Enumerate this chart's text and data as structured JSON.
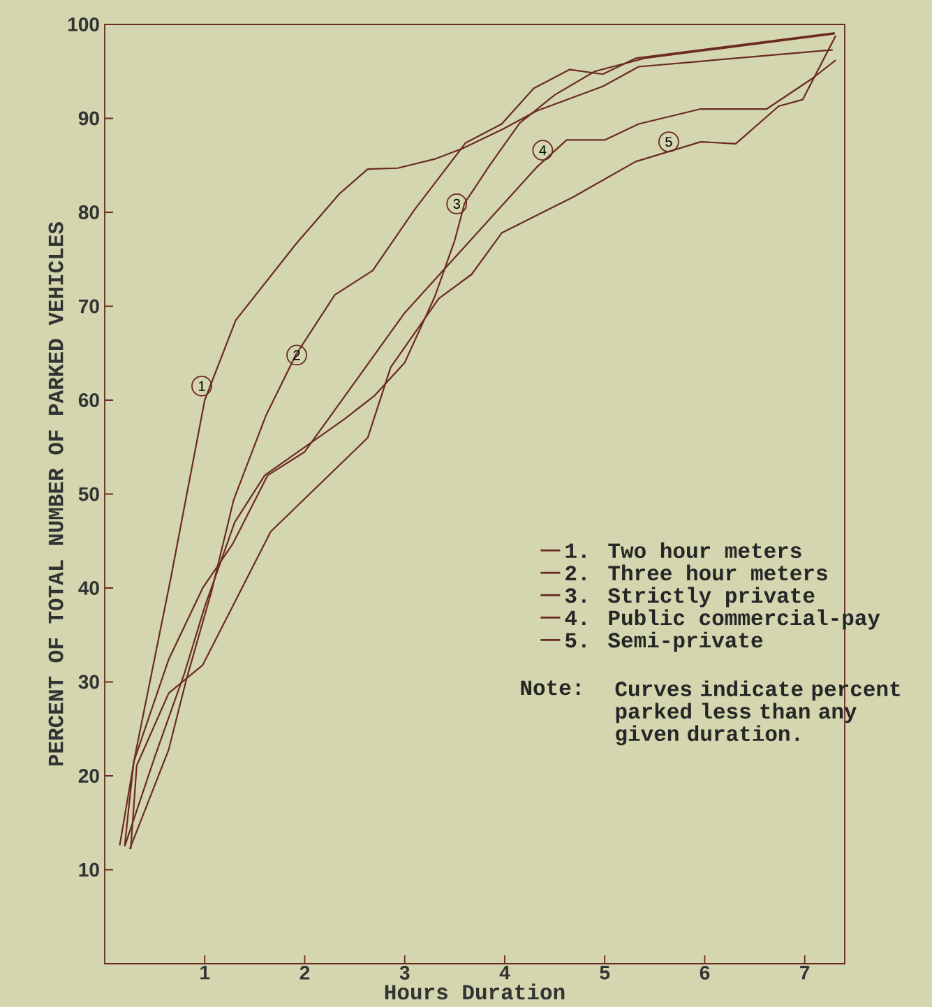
{
  "chart_data": {
    "type": "line",
    "xlabel": "Hours Duration",
    "ylabel": "PERCENT OF TOTAL NUMBER OF PARKED VEHICLES",
    "xlim": [
      0,
      7.4
    ],
    "ylim": [
      0,
      100
    ],
    "xticks": [
      1,
      2,
      3,
      4,
      5,
      6,
      7
    ],
    "yticks": [
      10,
      20,
      30,
      40,
      50,
      60,
      70,
      80,
      90,
      100
    ],
    "legend": "right",
    "series": [
      {
        "name": "1. Two hour meters",
        "color": "#6b2a22",
        "x": [
          0.15,
          0.3,
          0.66,
          1.0,
          1.31,
          1.91,
          2.35,
          2.63,
          2.93,
          3.31,
          3.58,
          3.99,
          4.32,
          4.98,
          5.34,
          7.28
        ],
        "values": [
          12.6,
          22,
          41,
          60,
          68.5,
          76.6,
          82,
          84.6,
          84.7,
          85.7,
          86.8,
          88.9,
          90.8,
          93.4,
          95.5,
          97.3
        ]
      },
      {
        "name": "2. Three hour meters",
        "color": "#6b2a22",
        "x": [
          0.25,
          0.64,
          0.82,
          1.07,
          1.29,
          1.61,
          1.91,
          2.3,
          2.68,
          3.1,
          3.61,
          3.97,
          4.29,
          4.65,
          4.98,
          5.31,
          7.3
        ],
        "values": [
          12.2,
          22.8,
          30.4,
          39.7,
          49.4,
          58.3,
          64.8,
          71.2,
          73.8,
          80.3,
          87.4,
          89.4,
          93.2,
          95.2,
          94.7,
          96.4,
          99.1
        ]
      },
      {
        "name": "3. Strictly private",
        "color": "#6b2a22",
        "x": [
          0.2,
          0.5,
          0.8,
          1.0,
          1.3,
          1.6,
          2.0,
          2.4,
          2.7,
          3.0,
          3.3,
          3.5,
          3.6,
          3.85,
          4.15,
          4.5,
          4.9,
          5.4,
          7.3
        ],
        "values": [
          12.5,
          22,
          31,
          38,
          47,
          52,
          55,
          58,
          60.5,
          64,
          71,
          77,
          81,
          85,
          89.5,
          92.5,
          95,
          96.4,
          99
        ]
      },
      {
        "name": "4. Public commercial-pay",
        "color": "#6b2a22",
        "x": [
          0.2,
          0.29,
          0.64,
          0.98,
          1.28,
          1.63,
          2.0,
          3.0,
          4.32,
          4.62,
          5.0,
          5.34,
          5.96,
          6.62,
          7.07,
          7.31
        ],
        "values": [
          12.6,
          21.5,
          32.4,
          40,
          44.7,
          52,
          54.5,
          69.3,
          84.8,
          87.7,
          87.7,
          89.4,
          91,
          91,
          94.2,
          96.2
        ]
      },
      {
        "name": "5. Semi-private",
        "color": "#6b2a22",
        "x": [
          0.26,
          0.32,
          0.64,
          0.98,
          1.66,
          2.63,
          2.86,
          3.34,
          3.67,
          3.97,
          4.68,
          5.31,
          5.96,
          6.31,
          6.74,
          6.98,
          7.31
        ],
        "values": [
          12.2,
          21.1,
          28.8,
          31.8,
          46,
          56,
          63.5,
          70.8,
          73.4,
          77.8,
          81.6,
          85.4,
          87.5,
          87.3,
          91.3,
          92,
          98.8
        ]
      }
    ],
    "annotations": [
      {
        "text": "1",
        "x": 0.97,
        "y": 61.5
      },
      {
        "text": "2",
        "x": 1.92,
        "y": 64.8
      },
      {
        "text": "3",
        "x": 3.52,
        "y": 80.9
      },
      {
        "text": "4",
        "x": 4.38,
        "y": 86.6
      },
      {
        "text": "5",
        "x": 5.64,
        "y": 87.5
      },
      "Note:",
      "Curves indicate percent parked less than any given duration."
    ]
  }
}
